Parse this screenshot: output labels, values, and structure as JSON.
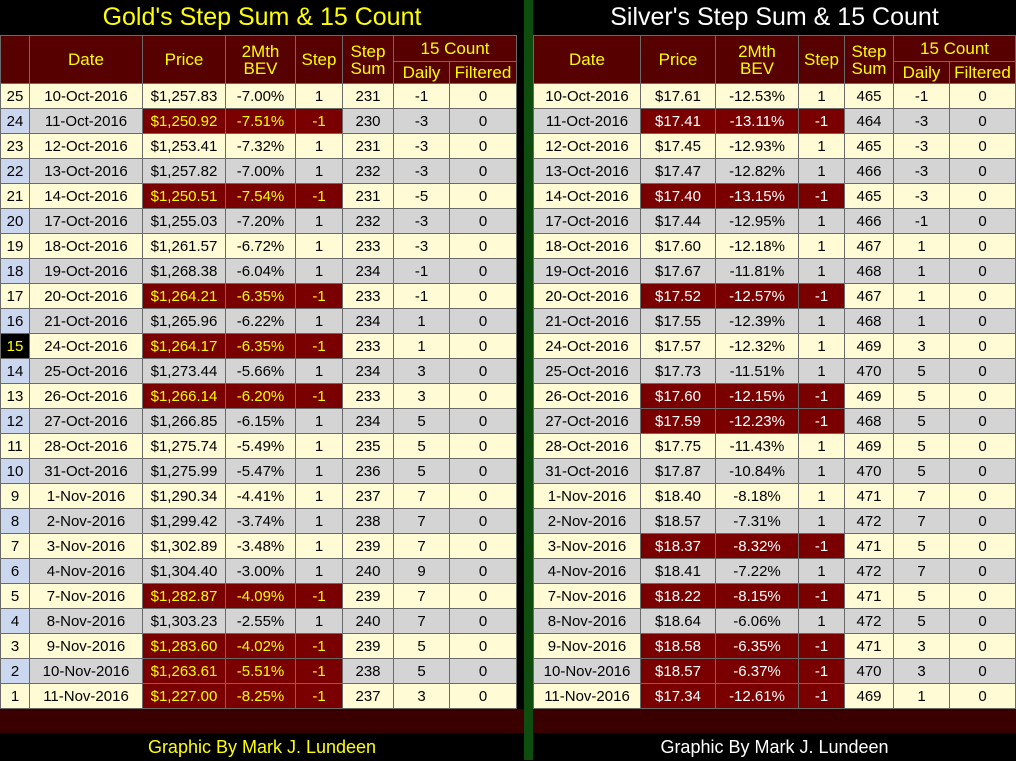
{
  "gold": {
    "title": "Gold's Step Sum & 15 Count",
    "headers": {
      "date": "Date",
      "price": "Price",
      "bev_line1": "2Mth",
      "bev_line2": "BEV",
      "step": "Step",
      "stepsum_line1": "Step",
      "stepsum_line2": "Sum",
      "count15": "15 Count",
      "daily": "Daily",
      "filtered": "Filtered"
    },
    "rows": [
      {
        "idx": "25",
        "date": "10-Oct-2016",
        "price": "$1,257.83",
        "bev": "-7.00%",
        "step": "1",
        "sum": "231",
        "daily": "-1",
        "filtered": "0"
      },
      {
        "idx": "24",
        "date": "11-Oct-2016",
        "price": "$1,250.92",
        "bev": "-7.51%",
        "step": "-1",
        "sum": "230",
        "daily": "-3",
        "filtered": "0"
      },
      {
        "idx": "23",
        "date": "12-Oct-2016",
        "price": "$1,253.41",
        "bev": "-7.32%",
        "step": "1",
        "sum": "231",
        "daily": "-3",
        "filtered": "0"
      },
      {
        "idx": "22",
        "date": "13-Oct-2016",
        "price": "$1,257.82",
        "bev": "-7.00%",
        "step": "1",
        "sum": "232",
        "daily": "-3",
        "filtered": "0"
      },
      {
        "idx": "21",
        "date": "14-Oct-2016",
        "price": "$1,250.51",
        "bev": "-7.54%",
        "step": "-1",
        "sum": "231",
        "daily": "-5",
        "filtered": "0"
      },
      {
        "idx": "20",
        "date": "17-Oct-2016",
        "price": "$1,255.03",
        "bev": "-7.20%",
        "step": "1",
        "sum": "232",
        "daily": "-3",
        "filtered": "0"
      },
      {
        "idx": "19",
        "date": "18-Oct-2016",
        "price": "$1,261.57",
        "bev": "-6.72%",
        "step": "1",
        "sum": "233",
        "daily": "-3",
        "filtered": "0"
      },
      {
        "idx": "18",
        "date": "19-Oct-2016",
        "price": "$1,268.38",
        "bev": "-6.04%",
        "step": "1",
        "sum": "234",
        "daily": "-1",
        "filtered": "0"
      },
      {
        "idx": "17",
        "date": "20-Oct-2016",
        "price": "$1,264.21",
        "bev": "-6.35%",
        "step": "-1",
        "sum": "233",
        "daily": "-1",
        "filtered": "0"
      },
      {
        "idx": "16",
        "date": "21-Oct-2016",
        "price": "$1,265.96",
        "bev": "-6.22%",
        "step": "1",
        "sum": "234",
        "daily": "1",
        "filtered": "0"
      },
      {
        "idx": "15",
        "date": "24-Oct-2016",
        "price": "$1,264.17",
        "bev": "-6.35%",
        "step": "-1",
        "sum": "233",
        "daily": "1",
        "filtered": "0"
      },
      {
        "idx": "14",
        "date": "25-Oct-2016",
        "price": "$1,273.44",
        "bev": "-5.66%",
        "step": "1",
        "sum": "234",
        "daily": "3",
        "filtered": "0"
      },
      {
        "idx": "13",
        "date": "26-Oct-2016",
        "price": "$1,266.14",
        "bev": "-6.20%",
        "step": "-1",
        "sum": "233",
        "daily": "3",
        "filtered": "0"
      },
      {
        "idx": "12",
        "date": "27-Oct-2016",
        "price": "$1,266.85",
        "bev": "-6.15%",
        "step": "1",
        "sum": "234",
        "daily": "5",
        "filtered": "0"
      },
      {
        "idx": "11",
        "date": "28-Oct-2016",
        "price": "$1,275.74",
        "bev": "-5.49%",
        "step": "1",
        "sum": "235",
        "daily": "5",
        "filtered": "0"
      },
      {
        "idx": "10",
        "date": "31-Oct-2016",
        "price": "$1,275.99",
        "bev": "-5.47%",
        "step": "1",
        "sum": "236",
        "daily": "5",
        "filtered": "0"
      },
      {
        "idx": "9",
        "date": "1-Nov-2016",
        "price": "$1,290.34",
        "bev": "-4.41%",
        "step": "1",
        "sum": "237",
        "daily": "7",
        "filtered": "0"
      },
      {
        "idx": "8",
        "date": "2-Nov-2016",
        "price": "$1,299.42",
        "bev": "-3.74%",
        "step": "1",
        "sum": "238",
        "daily": "7",
        "filtered": "0"
      },
      {
        "idx": "7",
        "date": "3-Nov-2016",
        "price": "$1,302.89",
        "bev": "-3.48%",
        "step": "1",
        "sum": "239",
        "daily": "7",
        "filtered": "0"
      },
      {
        "idx": "6",
        "date": "4-Nov-2016",
        "price": "$1,304.40",
        "bev": "-3.00%",
        "step": "1",
        "sum": "240",
        "daily": "9",
        "filtered": "0"
      },
      {
        "idx": "5",
        "date": "7-Nov-2016",
        "price": "$1,282.87",
        "bev": "-4.09%",
        "step": "-1",
        "sum": "239",
        "daily": "7",
        "filtered": "0"
      },
      {
        "idx": "4",
        "date": "8-Nov-2016",
        "price": "$1,303.23",
        "bev": "-2.55%",
        "step": "1",
        "sum": "240",
        "daily": "7",
        "filtered": "0"
      },
      {
        "idx": "3",
        "date": "9-Nov-2016",
        "price": "$1,283.60",
        "bev": "-4.02%",
        "step": "-1",
        "sum": "239",
        "daily": "5",
        "filtered": "0"
      },
      {
        "idx": "2",
        "date": "10-Nov-2016",
        "price": "$1,263.61",
        "bev": "-5.51%",
        "step": "-1",
        "sum": "238",
        "daily": "5",
        "filtered": "0"
      },
      {
        "idx": "1",
        "date": "11-Nov-2016",
        "price": "$1,227.00",
        "bev": "-8.25%",
        "step": "-1",
        "sum": "237",
        "daily": "3",
        "filtered": "0"
      }
    ],
    "credit": "Graphic By Mark J. Lundeen"
  },
  "silver": {
    "title": "Silver's Step Sum & 15 Count",
    "headers": {
      "date": "Date",
      "price": "Price",
      "bev_line1": "2Mth",
      "bev_line2": "BEV",
      "step": "Step",
      "stepsum_line1": "Step",
      "stepsum_line2": "Sum",
      "count15": "15 Count",
      "daily": "Daily",
      "filtered": "Filtered"
    },
    "rows": [
      {
        "date": "10-Oct-2016",
        "price": "$17.61",
        "bev": "-12.53%",
        "step": "1",
        "sum": "465",
        "daily": "-1",
        "filtered": "0"
      },
      {
        "date": "11-Oct-2016",
        "price": "$17.41",
        "bev": "-13.11%",
        "step": "-1",
        "sum": "464",
        "daily": "-3",
        "filtered": "0"
      },
      {
        "date": "12-Oct-2016",
        "price": "$17.45",
        "bev": "-12.93%",
        "step": "1",
        "sum": "465",
        "daily": "-3",
        "filtered": "0"
      },
      {
        "date": "13-Oct-2016",
        "price": "$17.47",
        "bev": "-12.82%",
        "step": "1",
        "sum": "466",
        "daily": "-3",
        "filtered": "0"
      },
      {
        "date": "14-Oct-2016",
        "price": "$17.40",
        "bev": "-13.15%",
        "step": "-1",
        "sum": "465",
        "daily": "-3",
        "filtered": "0"
      },
      {
        "date": "17-Oct-2016",
        "price": "$17.44",
        "bev": "-12.95%",
        "step": "1",
        "sum": "466",
        "daily": "-1",
        "filtered": "0"
      },
      {
        "date": "18-Oct-2016",
        "price": "$17.60",
        "bev": "-12.18%",
        "step": "1",
        "sum": "467",
        "daily": "1",
        "filtered": "0"
      },
      {
        "date": "19-Oct-2016",
        "price": "$17.67",
        "bev": "-11.81%",
        "step": "1",
        "sum": "468",
        "daily": "1",
        "filtered": "0"
      },
      {
        "date": "20-Oct-2016",
        "price": "$17.52",
        "bev": "-12.57%",
        "step": "-1",
        "sum": "467",
        "daily": "1",
        "filtered": "0"
      },
      {
        "date": "21-Oct-2016",
        "price": "$17.55",
        "bev": "-12.39%",
        "step": "1",
        "sum": "468",
        "daily": "1",
        "filtered": "0"
      },
      {
        "date": "24-Oct-2016",
        "price": "$17.57",
        "bev": "-12.32%",
        "step": "1",
        "sum": "469",
        "daily": "3",
        "filtered": "0"
      },
      {
        "date": "25-Oct-2016",
        "price": "$17.73",
        "bev": "-11.51%",
        "step": "1",
        "sum": "470",
        "daily": "5",
        "filtered": "0"
      },
      {
        "date": "26-Oct-2016",
        "price": "$17.60",
        "bev": "-12.15%",
        "step": "-1",
        "sum": "469",
        "daily": "5",
        "filtered": "0"
      },
      {
        "date": "27-Oct-2016",
        "price": "$17.59",
        "bev": "-12.23%",
        "step": "-1",
        "sum": "468",
        "daily": "5",
        "filtered": "0"
      },
      {
        "date": "28-Oct-2016",
        "price": "$17.75",
        "bev": "-11.43%",
        "step": "1",
        "sum": "469",
        "daily": "5",
        "filtered": "0"
      },
      {
        "date": "31-Oct-2016",
        "price": "$17.87",
        "bev": "-10.84%",
        "step": "1",
        "sum": "470",
        "daily": "5",
        "filtered": "0"
      },
      {
        "date": "1-Nov-2016",
        "price": "$18.40",
        "bev": "-8.18%",
        "step": "1",
        "sum": "471",
        "daily": "7",
        "filtered": "0"
      },
      {
        "date": "2-Nov-2016",
        "price": "$18.57",
        "bev": "-7.31%",
        "step": "1",
        "sum": "472",
        "daily": "7",
        "filtered": "0"
      },
      {
        "date": "3-Nov-2016",
        "price": "$18.37",
        "bev": "-8.32%",
        "step": "-1",
        "sum": "471",
        "daily": "5",
        "filtered": "0"
      },
      {
        "date": "4-Nov-2016",
        "price": "$18.41",
        "bev": "-7.22%",
        "step": "1",
        "sum": "472",
        "daily": "7",
        "filtered": "0"
      },
      {
        "date": "7-Nov-2016",
        "price": "$18.22",
        "bev": "-8.15%",
        "step": "-1",
        "sum": "471",
        "daily": "5",
        "filtered": "0"
      },
      {
        "date": "8-Nov-2016",
        "price": "$18.64",
        "bev": "-6.06%",
        "step": "1",
        "sum": "472",
        "daily": "5",
        "filtered": "0"
      },
      {
        "date": "9-Nov-2016",
        "price": "$18.58",
        "bev": "-6.35%",
        "step": "-1",
        "sum": "471",
        "daily": "3",
        "filtered": "0"
      },
      {
        "date": "10-Nov-2016",
        "price": "$18.57",
        "bev": "-6.37%",
        "step": "-1",
        "sum": "470",
        "daily": "3",
        "filtered": "0"
      },
      {
        "date": "11-Nov-2016",
        "price": "$17.34",
        "bev": "-12.61%",
        "step": "-1",
        "sum": "469",
        "daily": "1",
        "filtered": "0"
      }
    ],
    "credit": "Graphic By Mark J. Lundeen"
  }
}
